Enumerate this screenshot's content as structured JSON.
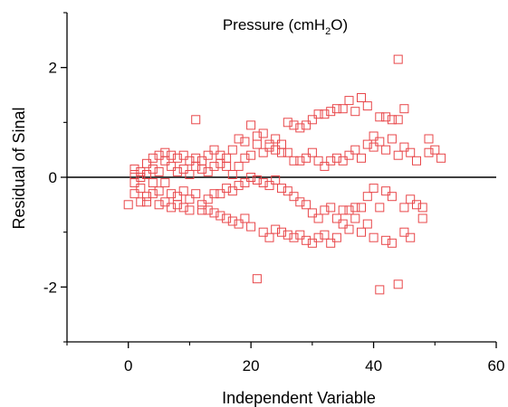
{
  "chart_data": {
    "type": "scatter",
    "title": "Pressure (cmH",
    "title_sub": "2",
    "title_suffix": "O)",
    "xlabel": "Independent Variable",
    "ylabel": "Residual of Sinal",
    "xlim": [
      -10,
      60
    ],
    "ylim": [
      -3,
      3
    ],
    "x_ticks": [
      0,
      20,
      40,
      60
    ],
    "x_tick_labels": [
      "0",
      "20",
      "40",
      "60"
    ],
    "y_ticks": [
      -2,
      0,
      2
    ],
    "y_tick_labels": [
      "-2",
      "0",
      "2"
    ],
    "zero_line": true,
    "grid": false,
    "marker": "square-open",
    "colors": {
      "marker": "#e8474a",
      "axis": "#000000",
      "zero_line": "#000000"
    },
    "series": [
      {
        "points": [
          [
            0,
            -0.5
          ],
          [
            1,
            0.15
          ],
          [
            1,
            -0.1
          ],
          [
            1,
            -0.3
          ],
          [
            1,
            0.05
          ],
          [
            2,
            0.1
          ],
          [
            2,
            -0.2
          ],
          [
            2,
            -0.45
          ],
          [
            2,
            0.0
          ],
          [
            3,
            0.25
          ],
          [
            3,
            -0.35
          ],
          [
            3,
            0.05
          ],
          [
            3,
            -0.45
          ],
          [
            4,
            0.15
          ],
          [
            4,
            -0.1
          ],
          [
            4,
            0.35
          ],
          [
            4,
            -0.3
          ],
          [
            5,
            0.4
          ],
          [
            5,
            0.1
          ],
          [
            5,
            -0.25
          ],
          [
            5,
            -0.5
          ],
          [
            6,
            0.3
          ],
          [
            6,
            -0.45
          ],
          [
            6,
            0.45
          ],
          [
            6,
            -0.1
          ],
          [
            7,
            0.4
          ],
          [
            7,
            0.2
          ],
          [
            7,
            -0.3
          ],
          [
            7,
            -0.55
          ],
          [
            8,
            0.35
          ],
          [
            8,
            0.1
          ],
          [
            8,
            -0.5
          ],
          [
            8,
            -0.35
          ],
          [
            9,
            0.4
          ],
          [
            9,
            0.15
          ],
          [
            9,
            -0.25
          ],
          [
            9,
            -0.55
          ],
          [
            10,
            0.3
          ],
          [
            10,
            0.05
          ],
          [
            10,
            -0.4
          ],
          [
            10,
            -0.6
          ],
          [
            11,
            1.05
          ],
          [
            11,
            0.35
          ],
          [
            11,
            0.2
          ],
          [
            11,
            -0.3
          ],
          [
            12,
            0.3
          ],
          [
            12,
            0.15
          ],
          [
            12,
            -0.6
          ],
          [
            12,
            -0.5
          ],
          [
            13,
            0.4
          ],
          [
            13,
            0.1
          ],
          [
            13,
            -0.4
          ],
          [
            13,
            -0.6
          ],
          [
            14,
            0.5
          ],
          [
            14,
            0.2
          ],
          [
            14,
            -0.3
          ],
          [
            14,
            -0.65
          ],
          [
            15,
            0.4
          ],
          [
            15,
            0.25
          ],
          [
            15,
            -0.7
          ],
          [
            15,
            -0.3
          ],
          [
            16,
            0.35
          ],
          [
            16,
            0.2
          ],
          [
            16,
            -0.75
          ],
          [
            16,
            -0.2
          ],
          [
            17,
            0.5
          ],
          [
            17,
            0.05
          ],
          [
            17,
            -0.8
          ],
          [
            17,
            -0.25
          ],
          [
            18,
            0.7
          ],
          [
            18,
            0.2
          ],
          [
            18,
            -0.85
          ],
          [
            18,
            -0.15
          ],
          [
            19,
            0.65
          ],
          [
            19,
            0.35
          ],
          [
            19,
            -0.75
          ],
          [
            19,
            -0.1
          ],
          [
            20,
            0.95
          ],
          [
            20,
            0.4
          ],
          [
            20,
            -0.9
          ],
          [
            20,
            0.0
          ],
          [
            21,
            -1.85
          ],
          [
            21,
            0.75
          ],
          [
            21,
            0.6
          ],
          [
            21,
            -0.05
          ],
          [
            22,
            0.8
          ],
          [
            22,
            0.45
          ],
          [
            22,
            -1.0
          ],
          [
            22,
            -0.1
          ],
          [
            23,
            0.55
          ],
          [
            23,
            0.6
          ],
          [
            23,
            -1.1
          ],
          [
            23,
            -0.15
          ],
          [
            24,
            0.7
          ],
          [
            24,
            0.5
          ],
          [
            24,
            -0.95
          ],
          [
            24,
            -0.05
          ],
          [
            25,
            0.6
          ],
          [
            25,
            0.45
          ],
          [
            25,
            -1.0
          ],
          [
            25,
            -0.2
          ],
          [
            26,
            1.0
          ],
          [
            26,
            0.45
          ],
          [
            26,
            -1.05
          ],
          [
            26,
            -0.25
          ],
          [
            27,
            0.95
          ],
          [
            27,
            0.3
          ],
          [
            27,
            -1.1
          ],
          [
            27,
            -0.35
          ],
          [
            28,
            0.9
          ],
          [
            28,
            0.3
          ],
          [
            28,
            -1.05
          ],
          [
            28,
            -0.45
          ],
          [
            29,
            0.95
          ],
          [
            29,
            0.35
          ],
          [
            29,
            -1.15
          ],
          [
            29,
            -0.5
          ],
          [
            30,
            1.05
          ],
          [
            30,
            0.45
          ],
          [
            30,
            -1.2
          ],
          [
            30,
            -0.65
          ],
          [
            31,
            1.15
          ],
          [
            31,
            0.3
          ],
          [
            31,
            -0.75
          ],
          [
            31,
            -1.1
          ],
          [
            32,
            1.15
          ],
          [
            32,
            0.2
          ],
          [
            32,
            -1.05
          ],
          [
            32,
            -0.6
          ],
          [
            33,
            1.2
          ],
          [
            33,
            0.3
          ],
          [
            33,
            -1.2
          ],
          [
            33,
            -0.55
          ],
          [
            34,
            1.25
          ],
          [
            34,
            0.35
          ],
          [
            34,
            -0.75
          ],
          [
            34,
            -1.1
          ],
          [
            35,
            1.25
          ],
          [
            35,
            0.3
          ],
          [
            35,
            -0.85
          ],
          [
            35,
            -0.6
          ],
          [
            36,
            1.4
          ],
          [
            36,
            0.4
          ],
          [
            36,
            -0.6
          ],
          [
            36,
            -0.95
          ],
          [
            37,
            1.2
          ],
          [
            37,
            0.5
          ],
          [
            37,
            -0.75
          ],
          [
            37,
            -0.55
          ],
          [
            38,
            1.45
          ],
          [
            38,
            0.35
          ],
          [
            38,
            -0.55
          ],
          [
            38,
            -1.0
          ],
          [
            39,
            1.3
          ],
          [
            39,
            0.6
          ],
          [
            39,
            -0.35
          ],
          [
            39,
            -0.85
          ],
          [
            40,
            0.75
          ],
          [
            40,
            0.55
          ],
          [
            40,
            -0.2
          ],
          [
            40,
            -1.1
          ],
          [
            41,
            -2.05
          ],
          [
            41,
            1.1
          ],
          [
            41,
            0.65
          ],
          [
            41,
            -0.55
          ],
          [
            42,
            1.1
          ],
          [
            42,
            0.5
          ],
          [
            42,
            -0.25
          ],
          [
            42,
            -1.15
          ],
          [
            43,
            1.05
          ],
          [
            43,
            0.7
          ],
          [
            43,
            -0.35
          ],
          [
            43,
            -1.2
          ],
          [
            44,
            2.15
          ],
          [
            44,
            -1.95
          ],
          [
            44,
            1.05
          ],
          [
            44,
            0.4
          ],
          [
            45,
            1.25
          ],
          [
            45,
            0.55
          ],
          [
            45,
            -0.55
          ],
          [
            45,
            -1.0
          ],
          [
            46,
            0.45
          ],
          [
            46,
            -0.4
          ],
          [
            46,
            -1.1
          ],
          [
            47,
            -0.5
          ],
          [
            47,
            0.3
          ],
          [
            48,
            -0.55
          ],
          [
            48,
            -0.75
          ],
          [
            49,
            0.7
          ],
          [
            49,
            0.45
          ],
          [
            50,
            0.5
          ],
          [
            51,
            0.35
          ]
        ]
      }
    ]
  }
}
